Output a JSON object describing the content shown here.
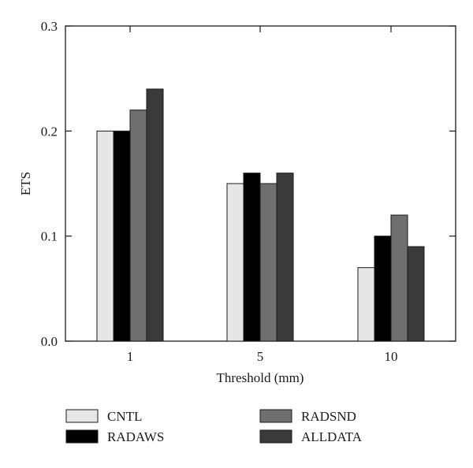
{
  "chart_data": {
    "type": "bar",
    "categories": [
      "1",
      "5",
      "10"
    ],
    "series": [
      {
        "name": "CNTL",
        "values": [
          0.2,
          0.15,
          0.07
        ],
        "color": "#e6e6e6"
      },
      {
        "name": "RADAWS",
        "values": [
          0.2,
          0.16,
          0.1
        ],
        "color": "#000000"
      },
      {
        "name": "RADSND",
        "values": [
          0.22,
          0.15,
          0.12
        ],
        "color": "#6f6f6f"
      },
      {
        "name": "ALLDATA",
        "values": [
          0.24,
          0.16,
          0.09
        ],
        "color": "#3a3a3a"
      }
    ],
    "title": "",
    "xlabel": "Threshold (mm)",
    "ylabel": "ETS",
    "ylim": [
      0,
      0.3
    ],
    "yticks": [
      "0.0",
      "0.1",
      "0.2",
      "0.3"
    ],
    "grid": false,
    "legend_position": "bottom"
  }
}
